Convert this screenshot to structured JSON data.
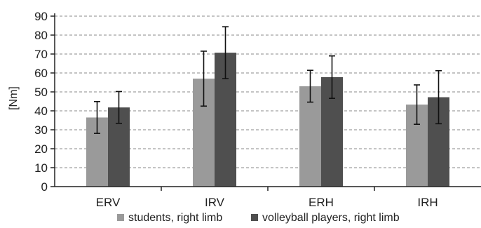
{
  "chart_data": {
    "type": "bar",
    "title": "",
    "xlabel": "",
    "ylabel": "[Nm]",
    "ylim": [
      0,
      90
    ],
    "yticks": [
      0,
      10,
      20,
      30,
      40,
      50,
      60,
      70,
      80,
      90
    ],
    "grid": true,
    "legend_position": "bottom",
    "categories": [
      "ERV",
      "IRV",
      "ERH",
      "IRH"
    ],
    "series": [
      {
        "name": "students, right limb",
        "color": "#9a9a9a",
        "values": [
          36.5,
          57,
          53,
          43.3
        ],
        "error": [
          8.4,
          14.5,
          8.4,
          10.4
        ]
      },
      {
        "name": "volleyball players, right limb",
        "color": "#4f4f4f",
        "values": [
          41.8,
          70.7,
          57.8,
          47.2
        ],
        "error": [
          8.4,
          13.7,
          11.2,
          14
        ]
      }
    ]
  }
}
